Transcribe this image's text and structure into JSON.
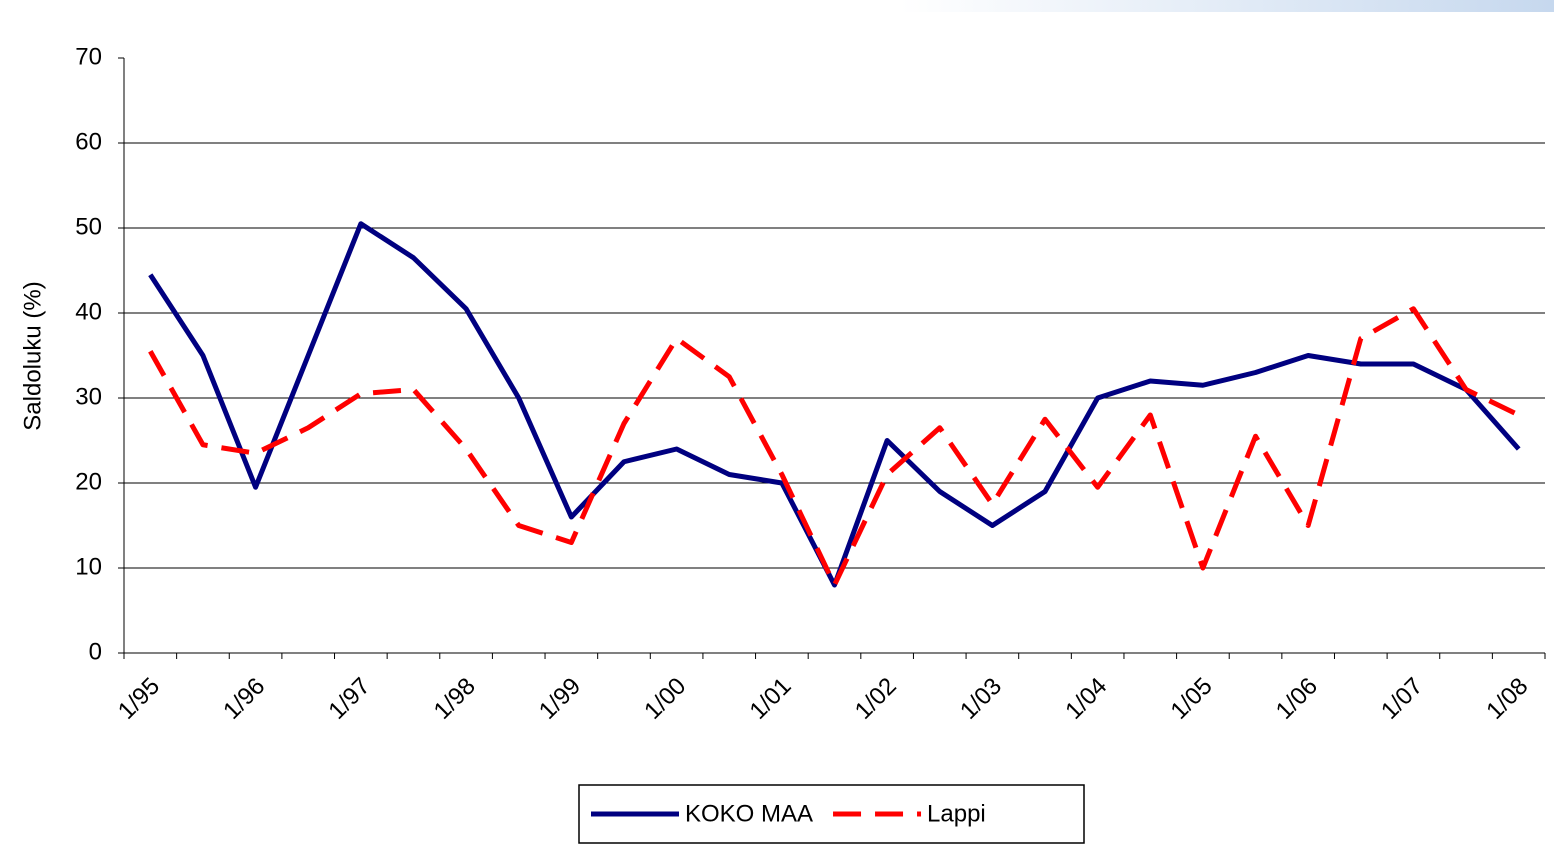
{
  "chart_data": {
    "type": "line",
    "y_label": "Saldoluku (%)",
    "categories": [
      "1/95",
      null,
      "1/96",
      null,
      "1/97",
      null,
      "1/98",
      null,
      "1/99",
      null,
      "1/00",
      null,
      "1/01",
      null,
      "1/02",
      null,
      "1/03",
      null,
      "1/04",
      null,
      "1/05",
      null,
      "1/06",
      null,
      "1/07",
      null,
      "1/08"
    ],
    "series": [
      {
        "name": "KOKO MAA",
        "color": "#000080",
        "dashed": false,
        "values": [
          44.5,
          35,
          19.5,
          35,
          50.5,
          46.5,
          40.5,
          30,
          16,
          22.5,
          24,
          21,
          20,
          8,
          25,
          19,
          15,
          19,
          30,
          32,
          31.5,
          33,
          35,
          34,
          34,
          31,
          24
        ]
      },
      {
        "name": "Lappi",
        "color": "#ff0000",
        "dashed": true,
        "values": [
          35.5,
          24.5,
          23.5,
          26.5,
          30.5,
          31,
          24,
          15,
          13,
          27,
          37,
          32.5,
          21,
          8,
          21,
          26.5,
          17.5,
          27.5,
          19.5,
          28,
          10,
          25.5,
          15,
          37,
          40.5,
          31,
          28
        ]
      }
    ],
    "ylim": [
      0,
      70
    ],
    "yticks": [
      0,
      10,
      20,
      30,
      40,
      50,
      60,
      70
    ],
    "grid": true,
    "legend": "bottom"
  }
}
